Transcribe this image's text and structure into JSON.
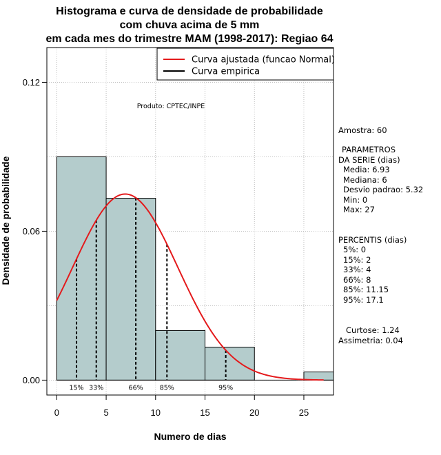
{
  "chart_data": {
    "type": "histogram",
    "title_lines": [
      "Histograma e curva de densidade de probabilidade",
      "com chuva acima de 5 mm",
      "em cada mes do trimestre MAM (1998-2017): Regiao 64"
    ],
    "xlabel": "Numero de dias",
    "ylabel": "Densidade de probabilidade",
    "xlim": [
      -1,
      28
    ],
    "ylim": [
      -0.006,
      0.134
    ],
    "x_ticks": [
      0,
      5,
      10,
      15,
      20,
      25
    ],
    "y_ticks": [
      0.0,
      0.06,
      0.12
    ],
    "y_tick_labels": [
      "0.00",
      "0.06",
      "0.12"
    ],
    "grid": true,
    "bars": [
      {
        "x0": 0,
        "x1": 5,
        "density": 0.09
      },
      {
        "x0": 5,
        "x1": 10,
        "density": 0.0733
      },
      {
        "x0": 10,
        "x1": 15,
        "density": 0.02
      },
      {
        "x0": 15,
        "x1": 20,
        "density": 0.0133
      },
      {
        "x0": 20,
        "x1": 25,
        "density": 0.0
      },
      {
        "x0": 25,
        "x1": 30,
        "density": 0.0033
      }
    ],
    "normal_fit": {
      "mean": 6.93,
      "sd": 5.32,
      "x_range": [
        0,
        27
      ]
    },
    "percentiles": [
      {
        "label": "15%",
        "x": 2
      },
      {
        "label": "33%",
        "x": 4
      },
      {
        "label": "66%",
        "x": 8
      },
      {
        "label": "85%",
        "x": 11.15
      },
      {
        "label": "95%",
        "x": 17.1
      }
    ],
    "legend": [
      {
        "label": "Curva ajustada (funcao Normal)",
        "color": "#e41a1c"
      },
      {
        "label": "Curva empirica",
        "color": "#000000"
      }
    ],
    "annotation": "Produto: CPTEC/INPE"
  },
  "side_panel": {
    "amostra": "Amostra: 60",
    "param_header_1": "PARAMETROS",
    "param_header_2": "DA SERIE (dias)",
    "params": [
      "Media: 6.93",
      "Mediana: 6",
      "Desvio padrao: 5.32",
      "Min: 0",
      "Max: 27"
    ],
    "percentis_header": "PERCENTIS (dias)",
    "percentis": [
      "5%: 0",
      "15%: 2",
      "33%: 4",
      "66%: 8",
      "85%: 11.15",
      "95%: 17.1"
    ],
    "curtose": "Curtose: 1.24",
    "assimetria": "Assimetria: 0.04"
  },
  "colors": {
    "bar_fill": "#b4cccc",
    "fit_curve": "#e41a1c",
    "grid": "#b0b0b0"
  }
}
